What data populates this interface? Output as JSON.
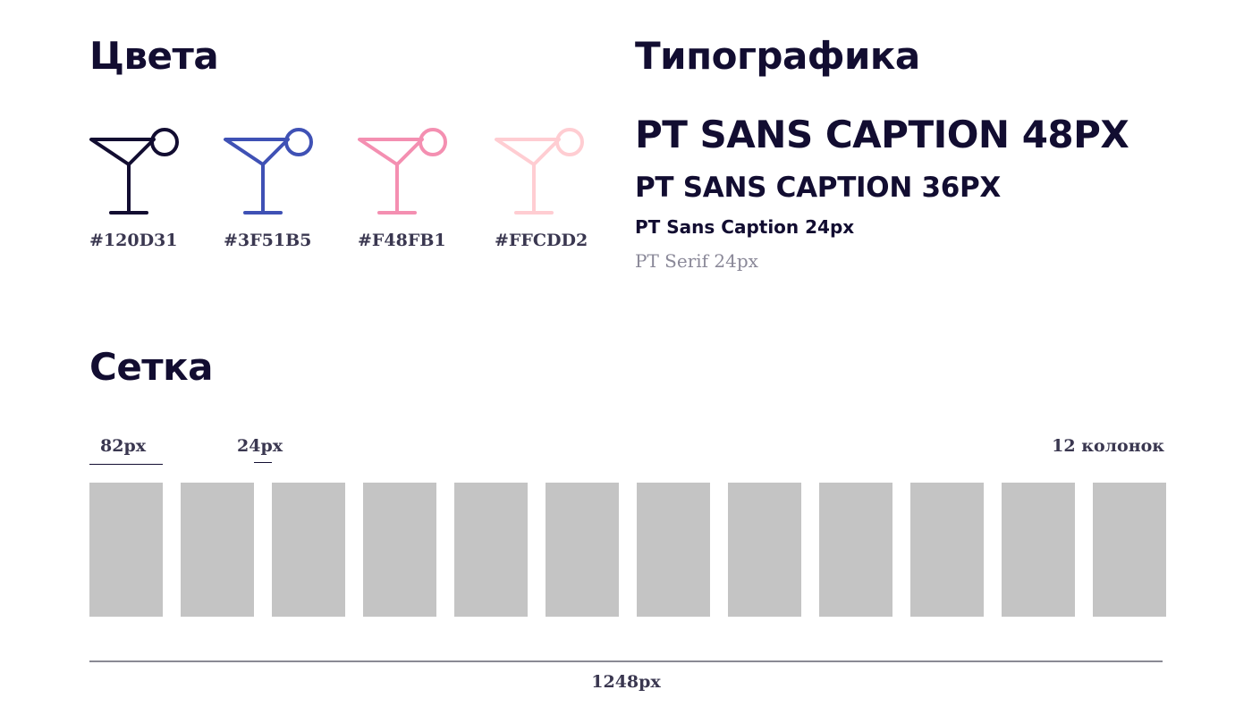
{
  "sections": {
    "colors_title": "Цвета",
    "typography_title": "Типографика",
    "grid_title": "Сетка"
  },
  "colors": [
    {
      "label": "#120D31",
      "hex": "#120D31",
      "icon": "cocktail-glass-icon"
    },
    {
      "label": "#3F51B5",
      "hex": "#3F51B5",
      "icon": "cocktail-glass-icon"
    },
    {
      "label": "#F48FB1",
      "hex": "#F48FB1",
      "icon": "cocktail-glass-icon"
    },
    {
      "label": "#FFCDD2",
      "hex": "#FFCDD2",
      "icon": "cocktail-glass-icon"
    }
  ],
  "typography": {
    "sample_48": "PT SANS CAPTION 48PX",
    "sample_36": "PT SANS CAPTION 36PX",
    "sample_24": "PT Sans Caption 24px",
    "sample_serif": "PT Serif 24px"
  },
  "grid": {
    "column_width_label": "82px",
    "gutter_label": "24px",
    "columns_label": "12 колонок",
    "total_width_label": "1248px",
    "column_count": 12,
    "column_color": "#C4C4C4"
  }
}
